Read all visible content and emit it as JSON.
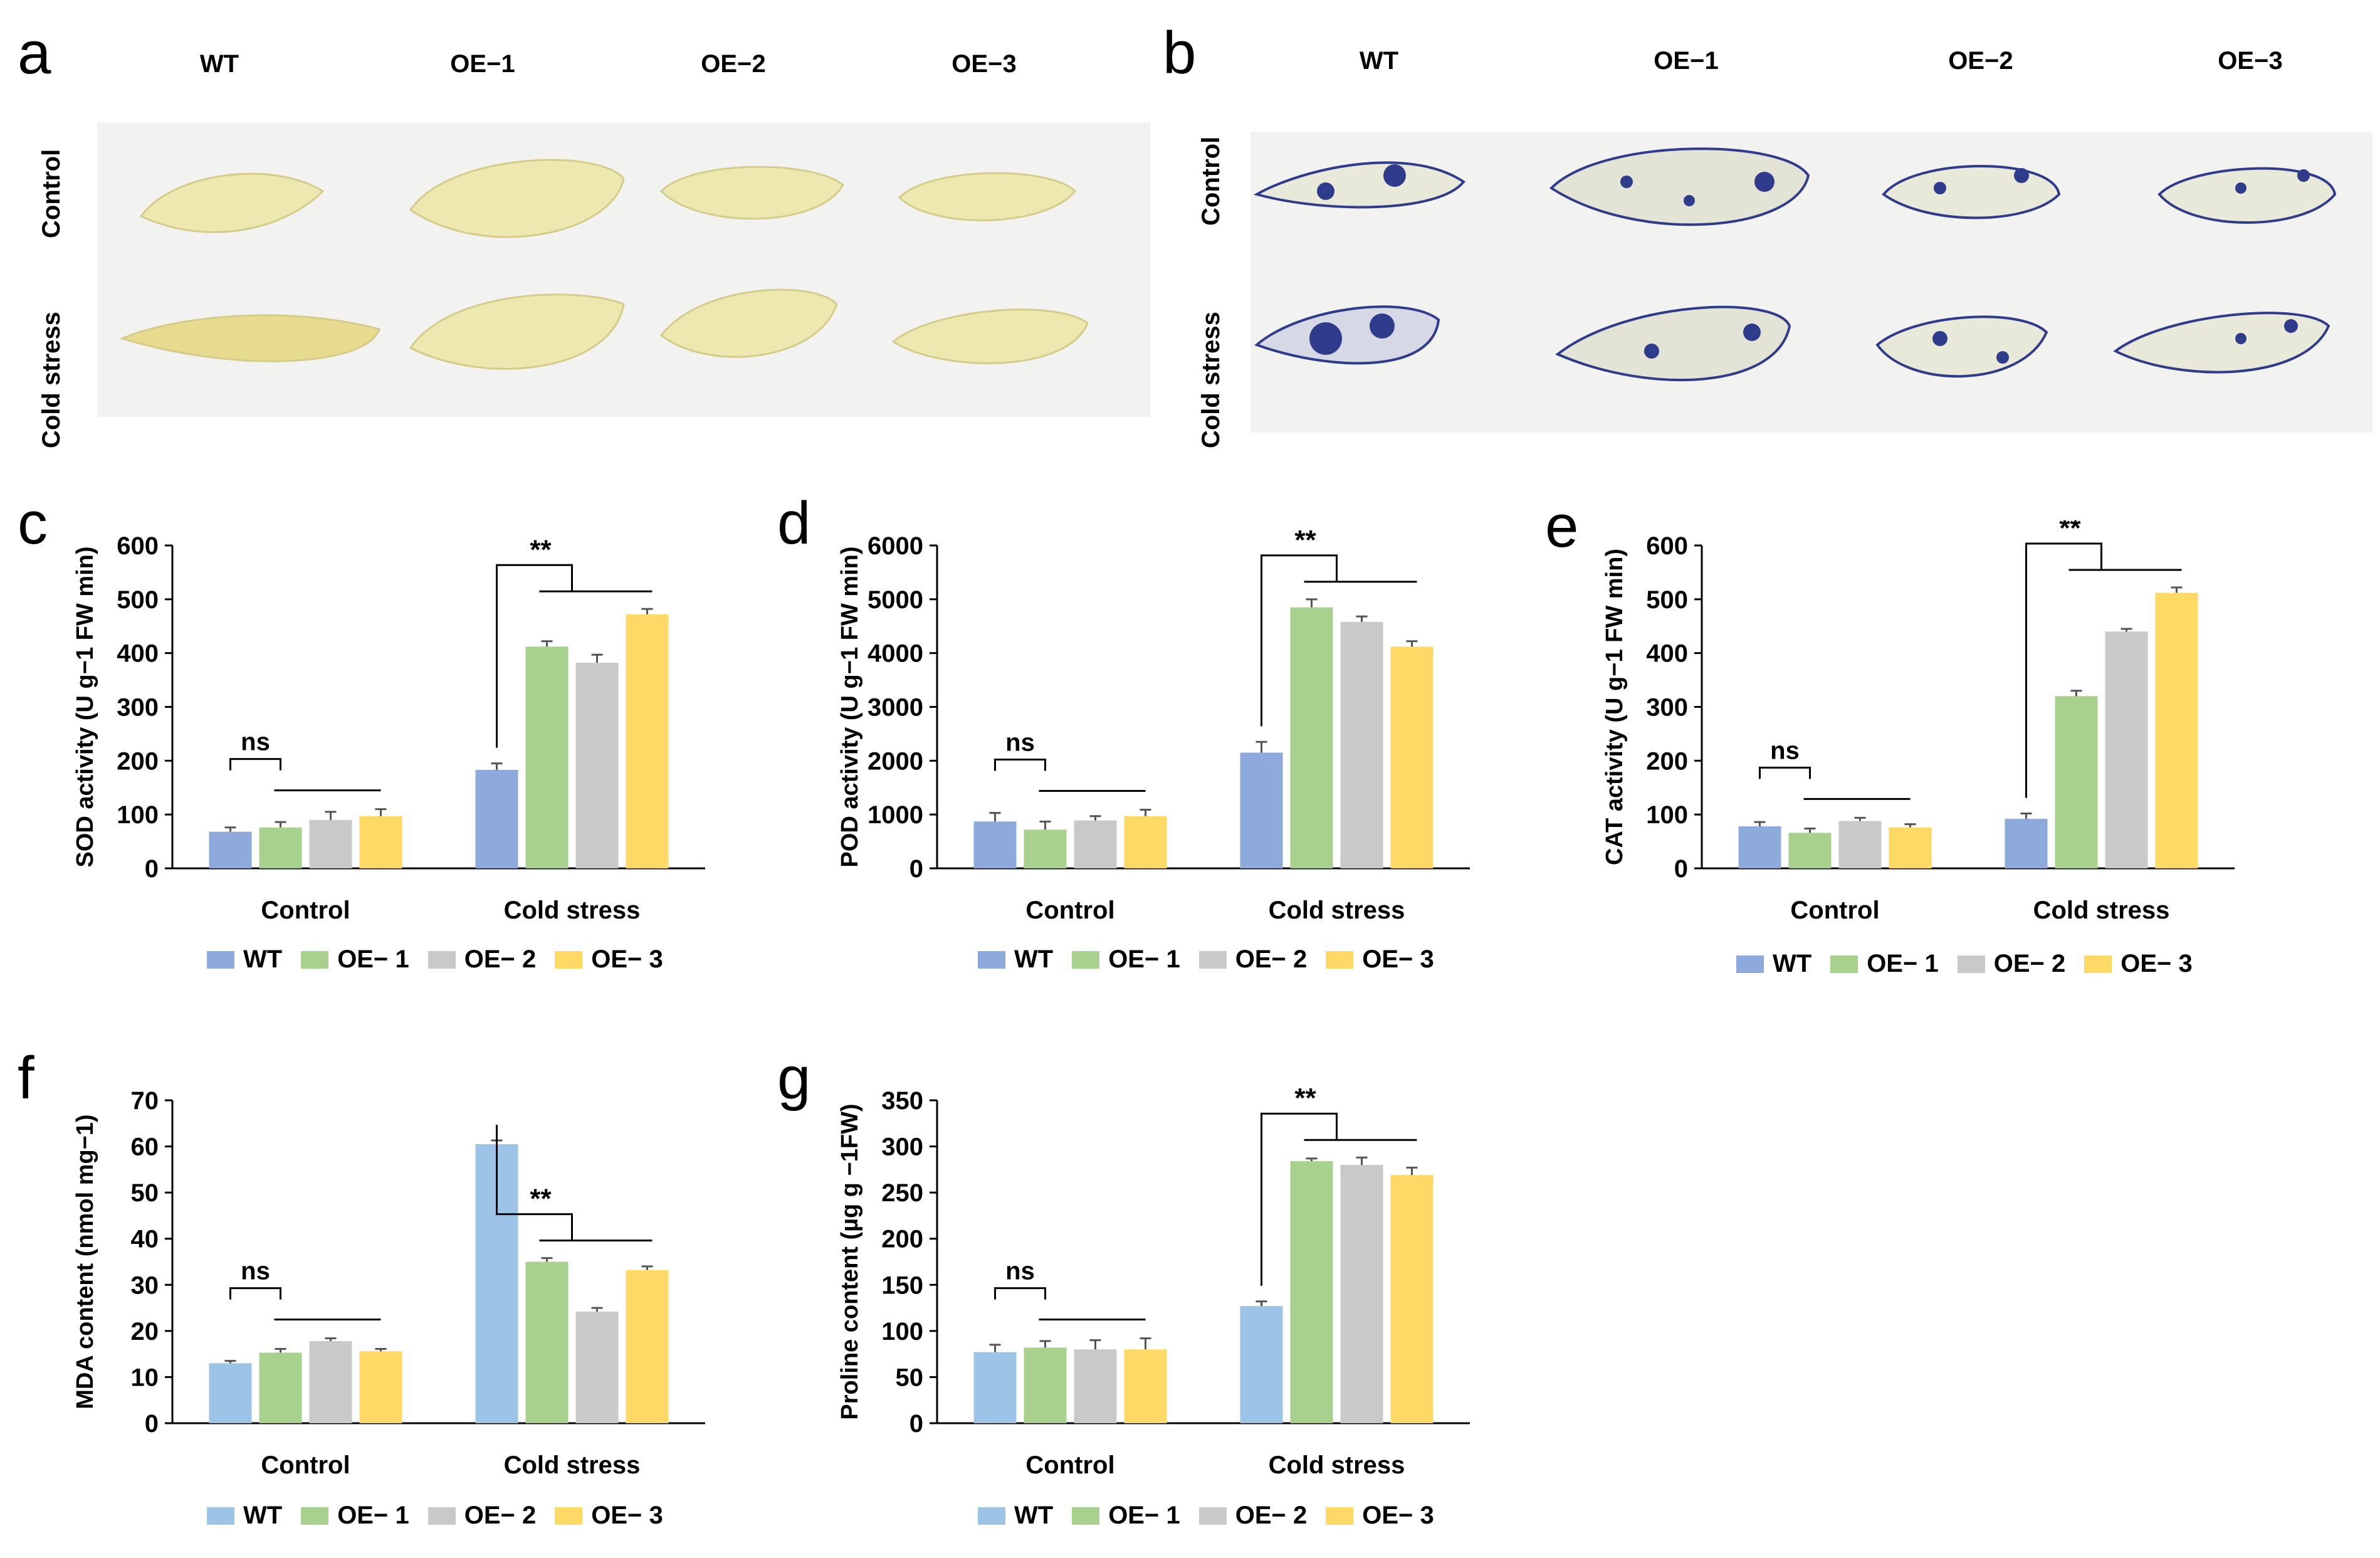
{
  "panels": {
    "a": {
      "letter": "a",
      "col_labels": [
        "WT",
        "OE−1",
        "OE−2",
        "OE−3"
      ],
      "row_labels": [
        "Control",
        "Cold stress"
      ]
    },
    "b": {
      "letter": "b",
      "col_labels": [
        "WT",
        "OE−1",
        "OE−2",
        "OE−3"
      ],
      "row_labels": [
        "Control",
        "Cold stress"
      ]
    }
  },
  "colors": {
    "wt_dark": "#8EA9DB",
    "wt_light": "#9DC3E6",
    "oe1": "#A9D18E",
    "oe2": "#C9C9C9",
    "oe3": "#FFD966",
    "leaf_yellow": "#EDE7B0",
    "stain_blue": "#2F3C8C",
    "photo_bg": "#F2F2F0"
  },
  "legend_labels": [
    "WT",
    "OE− 1",
    "OE− 2",
    "OE− 3"
  ],
  "chart_data": [
    {
      "id": "c",
      "letter": "c",
      "type": "bar",
      "categories": [
        "Control",
        "Cold stress"
      ],
      "series": [
        {
          "name": "WT",
          "values": [
            68,
            183
          ],
          "errors": [
            8,
            12
          ]
        },
        {
          "name": "OE− 1",
          "values": [
            76,
            412
          ],
          "errors": [
            10,
            10
          ]
        },
        {
          "name": "OE− 2",
          "values": [
            90,
            382
          ],
          "errors": [
            15,
            15
          ]
        },
        {
          "name": "OE− 3",
          "values": [
            97,
            472
          ],
          "errors": [
            13,
            10
          ]
        }
      ],
      "ylabel": "SOD activity (U g−1 FW min)",
      "ylim": [
        0,
        600
      ],
      "yticks": [
        0,
        100,
        200,
        300,
        400,
        500,
        600
      ],
      "annotations": [
        "ns",
        "**"
      ],
      "wt_color": "wt_dark"
    },
    {
      "id": "d",
      "letter": "d",
      "type": "bar",
      "categories": [
        "Control",
        "Cold stress"
      ],
      "series": [
        {
          "name": "WT",
          "values": [
            870,
            2150
          ],
          "errors": [
            160,
            200
          ]
        },
        {
          "name": "OE− 1",
          "values": [
            720,
            4850
          ],
          "errors": [
            150,
            150
          ]
        },
        {
          "name": "OE− 2",
          "values": [
            890,
            4580
          ],
          "errors": [
            80,
            100
          ]
        },
        {
          "name": "OE− 3",
          "values": [
            970,
            4120
          ],
          "errors": [
            120,
            100
          ]
        }
      ],
      "ylabel": "POD activity (U g−1 FW min)",
      "ylim": [
        0,
        6000
      ],
      "yticks": [
        0,
        1000,
        2000,
        3000,
        4000,
        5000,
        6000
      ],
      "annotations": [
        "ns",
        "**"
      ],
      "wt_color": "wt_dark"
    },
    {
      "id": "e",
      "letter": "e",
      "type": "bar",
      "categories": [
        "Control",
        "Cold stress"
      ],
      "series": [
        {
          "name": "WT",
          "values": [
            78,
            92
          ],
          "errors": [
            8,
            10
          ]
        },
        {
          "name": "OE− 1",
          "values": [
            66,
            320
          ],
          "errors": [
            8,
            10
          ]
        },
        {
          "name": "OE− 2",
          "values": [
            88,
            440
          ],
          "errors": [
            6,
            5
          ]
        },
        {
          "name": "OE− 3",
          "values": [
            76,
            512
          ],
          "errors": [
            6,
            10
          ]
        }
      ],
      "ylabel": "CAT activity (U g−1 FW min)",
      "ylim": [
        0,
        600
      ],
      "yticks": [
        0,
        100,
        200,
        300,
        400,
        500,
        600
      ],
      "annotations": [
        "ns",
        "**"
      ],
      "wt_color": "wt_dark"
    },
    {
      "id": "f",
      "letter": "f",
      "type": "bar",
      "categories": [
        "Control",
        "Cold stress"
      ],
      "series": [
        {
          "name": "WT",
          "values": [
            13,
            60.5
          ],
          "errors": [
            0.5,
            0.8
          ]
        },
        {
          "name": "OE− 1",
          "values": [
            15.3,
            35
          ],
          "errors": [
            0.8,
            0.8
          ]
        },
        {
          "name": "OE− 2",
          "values": [
            17.8,
            24.2
          ],
          "errors": [
            0.6,
            0.8
          ]
        },
        {
          "name": "OE− 3",
          "values": [
            15.6,
            33.2
          ],
          "errors": [
            0.5,
            0.8
          ]
        }
      ],
      "ylabel": "MDA content (nmol mg−1)",
      "ylim": [
        0,
        70
      ],
      "yticks": [
        0,
        10,
        20,
        30,
        40,
        50,
        60,
        70
      ],
      "annotations": [
        "ns",
        "**"
      ],
      "wt_color": "wt_light"
    },
    {
      "id": "g",
      "letter": "g",
      "type": "bar",
      "categories": [
        "Control",
        "Cold stress"
      ],
      "series": [
        {
          "name": "WT",
          "values": [
            77,
            127
          ],
          "errors": [
            8,
            5
          ]
        },
        {
          "name": "OE− 1",
          "values": [
            82,
            284
          ],
          "errors": [
            7,
            3
          ]
        },
        {
          "name": "OE− 2",
          "values": [
            80,
            280
          ],
          "errors": [
            10,
            8
          ]
        },
        {
          "name": "OE− 3",
          "values": [
            80,
            269
          ],
          "errors": [
            12,
            8
          ]
        }
      ],
      "ylabel": "Proline content (µg g −1FW)",
      "ylim": [
        0,
        350
      ],
      "yticks": [
        0,
        50,
        100,
        150,
        200,
        250,
        300,
        350
      ],
      "annotations": [
        "ns",
        "**"
      ],
      "wt_color": "wt_light"
    }
  ]
}
